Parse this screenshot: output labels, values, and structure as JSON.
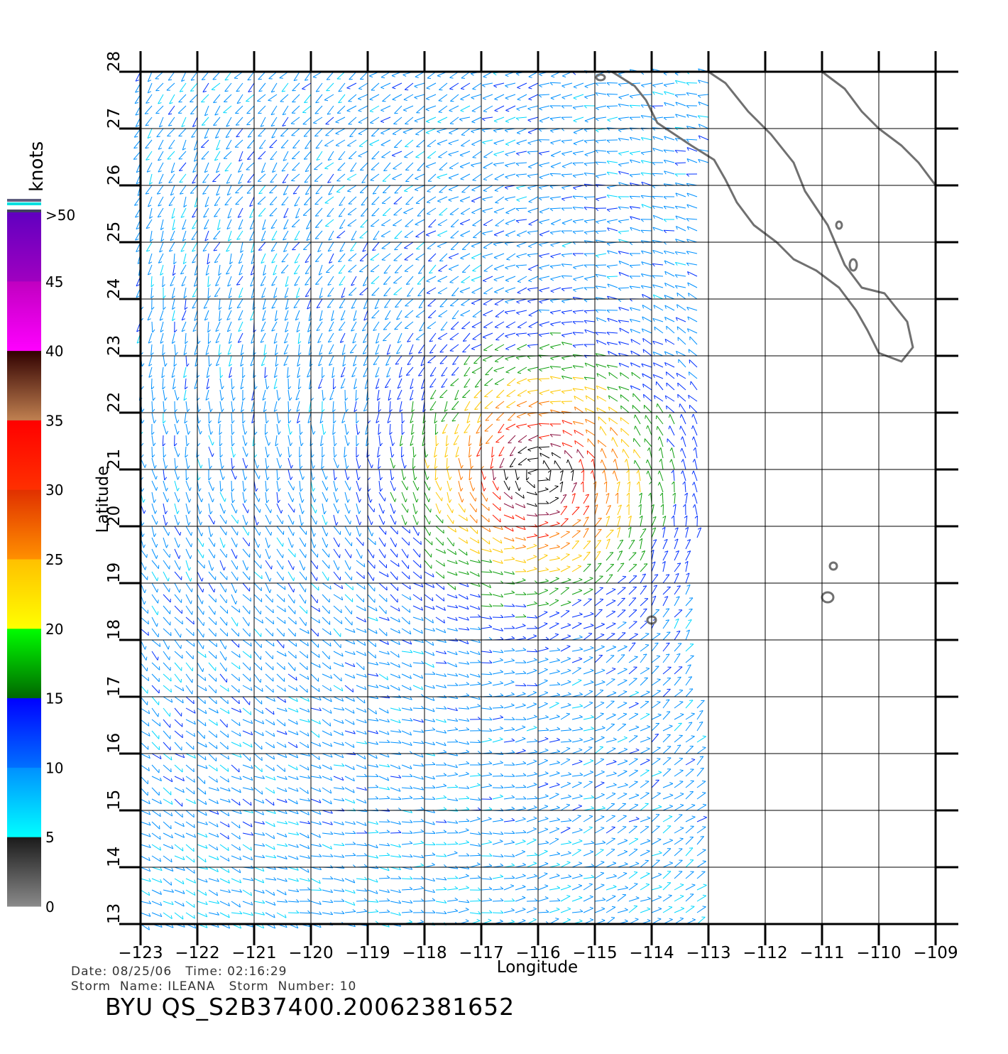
{
  "map": {
    "axes": {
      "x_label": "Longitude",
      "y_label": "Latitude",
      "lon_range": [
        -123,
        -109
      ],
      "lat_range": [
        13,
        28
      ],
      "lon_ticks": [
        "-123",
        "-122",
        "-121",
        "-120",
        "-119",
        "-118",
        "-117",
        "-116",
        "-115",
        "-114",
        "-113",
        "-112",
        "-111",
        "-110",
        "-109"
      ],
      "lat_ticks": [
        "13",
        "14",
        "15",
        "16",
        "17",
        "18",
        "19",
        "20",
        "21",
        "22",
        "23",
        "24",
        "25",
        "26",
        "27",
        "28"
      ],
      "grid": true
    },
    "colorbar": {
      "unit_label": "knots",
      "tick_labels": [
        "0",
        "5",
        "10",
        "15",
        "20",
        "25",
        "30",
        "35",
        "40",
        "45",
        ">50"
      ],
      "bands": [
        {
          "from": 0,
          "to": 5,
          "colors": [
            "#8a8a8a",
            "#1a1a1a"
          ]
        },
        {
          "from": 5,
          "to": 10,
          "colors": [
            "#00ffff",
            "#0090ff"
          ]
        },
        {
          "from": 10,
          "to": 15,
          "colors": [
            "#0070ff",
            "#0000ff"
          ]
        },
        {
          "from": 15,
          "to": 20,
          "colors": [
            "#006600",
            "#00ff00"
          ]
        },
        {
          "from": 20,
          "to": 25,
          "colors": [
            "#ffff00",
            "#ffc000"
          ]
        },
        {
          "from": 25,
          "to": 30,
          "colors": [
            "#ff9000",
            "#e03000"
          ]
        },
        {
          "from": 30,
          "to": 35,
          "colors": [
            "#ff3000",
            "#ff0000"
          ]
        },
        {
          "from": 35,
          "to": 40,
          "colors": [
            "#c08050",
            "#300000"
          ]
        },
        {
          "from": 40,
          "to": 45,
          "colors": [
            "#ff00ff",
            "#c000c0"
          ]
        },
        {
          "from": 45,
          "to": 50,
          "colors": [
            "#a000c0",
            "#6000c0"
          ]
        }
      ]
    },
    "wind_field": {
      "storm_center_lon": -116.0,
      "storm_center_lat": 20.9,
      "land_color": "#707070",
      "grid_color": "#000000"
    }
  },
  "info": {
    "date_label": "Date:",
    "date": "08/25/06",
    "time_label": "Time:",
    "time": "02:16:29",
    "storm_name_label": "Storm  Name:",
    "storm_name": "ILEANA",
    "storm_number_label": "Storm  Number:",
    "storm_number": "10",
    "product_id": "BYU  QS_S2B37400.20062381652"
  }
}
